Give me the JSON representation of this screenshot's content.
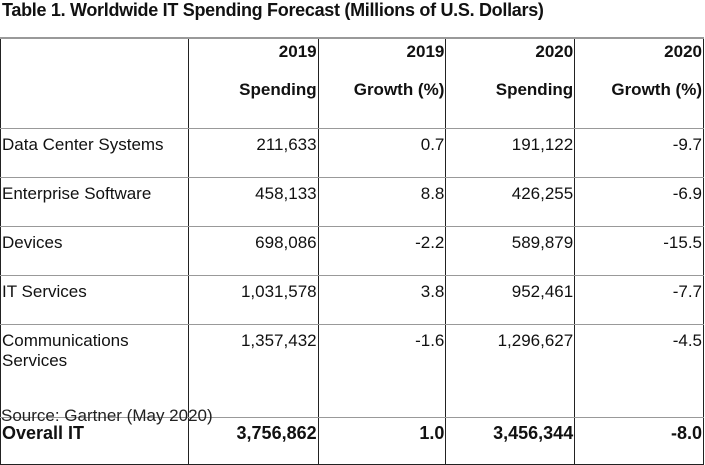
{
  "title": "Table 1. Worldwide IT Spending Forecast (Millions of U.S. Dollars)",
  "table": {
    "headers": [
      {
        "line1": "",
        "line2": ""
      },
      {
        "line1": "2019",
        "line2": "Spending"
      },
      {
        "line1": "2019",
        "line2": "Growth (%)"
      },
      {
        "line1": "2020",
        "line2": "Spending"
      },
      {
        "line1": "2020",
        "line2": "Growth (%)"
      }
    ],
    "rows": [
      {
        "category": "Data Center Systems",
        "spending_2019": "211,633",
        "growth_2019": "0.7",
        "spending_2020": "191,122",
        "growth_2020": "-9.7"
      },
      {
        "category": "Enterprise Software",
        "spending_2019": "458,133",
        "growth_2019": "8.8",
        "spending_2020": "426,255",
        "growth_2020": "-6.9"
      },
      {
        "category": "Devices",
        "spending_2019": "698,086",
        "growth_2019": "-2.2",
        "spending_2020": "589,879",
        "growth_2020": "-15.5"
      },
      {
        "category": "IT Services",
        "spending_2019": "1,031,578",
        "growth_2019": "3.8",
        "spending_2020": "952,461",
        "growth_2020": "-7.7"
      },
      {
        "category_line1": "Communications",
        "category_line2": "Services",
        "spending_2019": "1,357,432",
        "growth_2019": "-1.6",
        "spending_2020": "1,296,627",
        "growth_2020": "-4.5"
      }
    ],
    "total": {
      "category": "Overall IT",
      "spending_2019": "3,756,862",
      "growth_2019": "1.0",
      "spending_2020": "3,456,344",
      "growth_2020": "-8.0"
    }
  },
  "source": "Source: Gartner (May 2020)"
}
